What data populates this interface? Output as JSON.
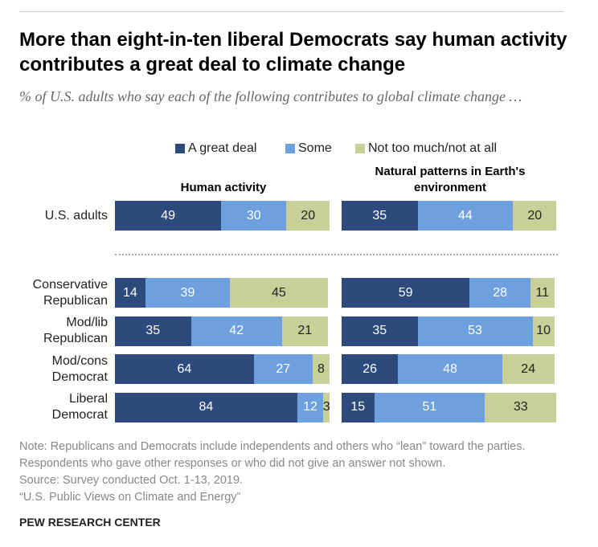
{
  "chart_data": {
    "type": "bar",
    "stacked": true,
    "title": "More than eight-in-ten liberal Democrats say human activity contributes a great deal to climate change",
    "subtitle": "% of U.S. adults who say each of the following contributes to global climate change …",
    "categories": [
      "U.S. adults",
      "Conservative Republican",
      "Mod/lib Republican",
      "Mod/cons Democrat",
      "Liberal Democrat"
    ],
    "series": [
      {
        "name": "A great deal",
        "color": "#2c4a7c"
      },
      {
        "name": "Some",
        "color": "#6e9fdf"
      },
      {
        "name": "Not too much/not at all",
        "color": "#c9cf98"
      }
    ],
    "panels": [
      {
        "title": "Human activity",
        "series": [
          {
            "values": [
              49,
              14,
              35,
              64,
              84
            ]
          },
          {
            "values": [
              30,
              39,
              42,
              27,
              12
            ]
          },
          {
            "values": [
              20,
              45,
              21,
              8,
              3
            ]
          }
        ]
      },
      {
        "title": "Natural patterns in Earth's environment",
        "series": [
          {
            "values": [
              35,
              59,
              35,
              26,
              15
            ]
          },
          {
            "values": [
              44,
              28,
              53,
              48,
              51
            ]
          },
          {
            "values": [
              20,
              11,
              10,
              24,
              33
            ]
          }
        ]
      }
    ]
  },
  "notes": {
    "note": "Note: Republicans and Democrats include independents and others who “lean” toward the parties. Respondents who gave other responses or who did not give an answer not shown.",
    "source": "Source: Survey conducted Oct. 1-13, 2019.",
    "report": "“U.S. Public Views on Climate and Energy”",
    "credit": "PEW RESEARCH CENTER"
  }
}
